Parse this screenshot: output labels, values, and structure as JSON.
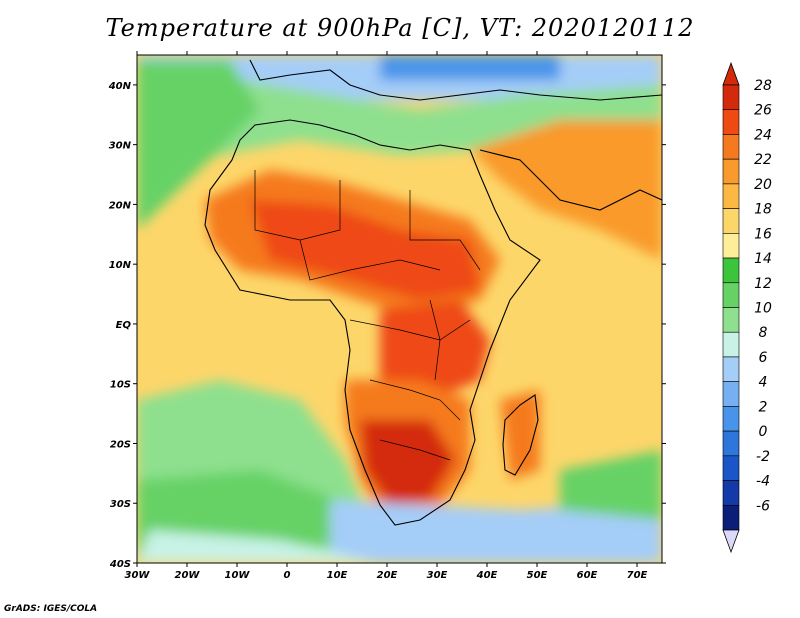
{
  "title": "Temperature at 900hPa [C], VT: 2020120112",
  "credit": "GrADS: IGES/COLA",
  "map": {
    "lon_ticks": [
      "30W",
      "20W",
      "10W",
      "0",
      "10E",
      "20E",
      "30E",
      "40E",
      "50E",
      "60E",
      "70E"
    ],
    "lat_ticks": [
      "40N",
      "30N",
      "20N",
      "10N",
      "EQ",
      "10S",
      "20S",
      "30S",
      "40S"
    ],
    "lon_range": [
      -30,
      75
    ],
    "lat_range": [
      -40,
      45
    ]
  },
  "colorbar": {
    "labels": [
      "28",
      "26",
      "24",
      "22",
      "20",
      "18",
      "16",
      "14",
      "12",
      "10",
      "8",
      "6",
      "4",
      "2",
      "0",
      "-2",
      "-4",
      "-6"
    ],
    "colors": [
      "#d42a0c",
      "#ee4a12",
      "#f57a1e",
      "#f99a2c",
      "#fbb944",
      "#fdd66a",
      "#fdef9a",
      "#3cc43c",
      "#66d266",
      "#8ee08e",
      "#c8f2e6",
      "#a4cdf8",
      "#76b0f2",
      "#4894ea",
      "#2e76dc",
      "#1a56c8",
      "#123aa8",
      "#0b1e78"
    ],
    "over_color": "#d42a0c",
    "under_color": "#dcd8f8"
  }
}
